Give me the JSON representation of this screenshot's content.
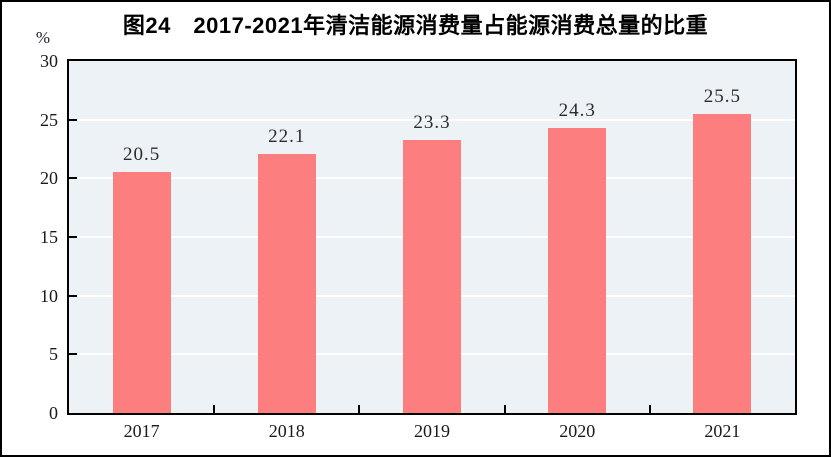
{
  "figure": {
    "title": "图24　2017-2021年清洁能源消费量占能源消费总量的比重",
    "unit_label": "%"
  },
  "chart_data": {
    "type": "bar",
    "title": "图24　2017-2021年清洁能源消费量占能源消费总量的比重",
    "categories": [
      "2017",
      "2018",
      "2019",
      "2020",
      "2021"
    ],
    "values": [
      20.5,
      22.1,
      23.3,
      24.3,
      25.5
    ],
    "data_labels": [
      "20.5",
      "22.1",
      "23.3",
      "24.3",
      "25.5"
    ],
    "xlabel": "",
    "ylabel": "%",
    "ylim": [
      0,
      30
    ],
    "yticks": [
      0,
      5,
      10,
      15,
      20,
      25,
      30
    ],
    "grid": true,
    "legend_position": "none",
    "colors": {
      "bar": "#FC7E7E",
      "plot_background": "#ECF2F5",
      "gridline": "#FFFFFF",
      "axis": "#000000",
      "label_text": "#2B2B2B"
    }
  }
}
